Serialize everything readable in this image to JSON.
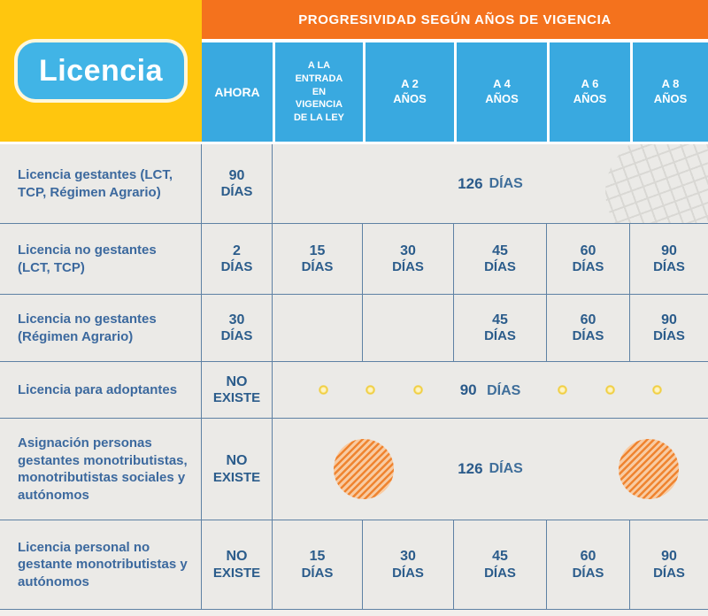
{
  "palette": {
    "yellow": "#FFC60E",
    "orange": "#F4721D",
    "cyan": "#39A9E0",
    "pill_cyan": "#41B4E6",
    "label_blue": "#3C699E",
    "value_blue": "#2B5C8B",
    "grid_line": "#5E81A4",
    "row_bg": "#EBEAE7",
    "hatch_orange": "#EF8430",
    "hatch_orange_light": "#F8CBA2",
    "dot_yellow": "#F0CA2C"
  },
  "header": {
    "licencia_label": "Licencia",
    "band_title": "PROGRESIVIDAD SEGÚN AÑOS DE VIGENCIA",
    "columns": [
      "AHORA",
      "A LA\nENTRADA\nEN\nVIGENCIA\nDE LA LEY",
      "A 2\nAÑOS",
      "A 4\nAÑOS",
      "A 6\nAÑOS",
      "A 8\nAÑOS"
    ]
  },
  "rows": [
    {
      "label": "Licencia gestantes (LCT, TCP, Régimen Agrario)",
      "ahora_top": "90",
      "ahora_bottom": "DÍAS",
      "merged_num": "126",
      "merged_unit": "DÍAS"
    },
    {
      "label": "Licencia no gestantes (LCT, TCP)",
      "cells": [
        {
          "top": "2",
          "bottom": "DÍAS"
        },
        {
          "top": "15",
          "bottom": "DÍAS"
        },
        {
          "top": "30",
          "bottom": "DÍAS"
        },
        {
          "top": "45",
          "bottom": "DÍAS"
        },
        {
          "top": "60",
          "bottom": "DÍAS"
        },
        {
          "top": "90",
          "bottom": "DÍAS"
        }
      ]
    },
    {
      "label": "Licencia no gestantes (Régimen Agrario)",
      "cells": [
        {
          "top": "30",
          "bottom": "DÍAS"
        },
        {
          "top": "",
          "bottom": ""
        },
        {
          "top": "",
          "bottom": ""
        },
        {
          "top": "45",
          "bottom": "DÍAS"
        },
        {
          "top": "60",
          "bottom": "DÍAS"
        },
        {
          "top": "90",
          "bottom": "DÍAS"
        }
      ]
    },
    {
      "label": "Licencia para adoptantes",
      "ahora_top": "NO",
      "ahora_bottom": "EXISTE",
      "merged_num": "90",
      "merged_unit": "DÍAS"
    },
    {
      "label": "Asignación personas gestantes monotributistas, monotributistas sociales y autónomos",
      "ahora_top": "NO",
      "ahora_bottom": "EXISTE",
      "merged_num": "126",
      "merged_unit": "DÍAS"
    },
    {
      "label": "Licencia personal no gestante monotributistas y autónomos",
      "cells": [
        {
          "top": "NO",
          "bottom": "EXISTE"
        },
        {
          "top": "15",
          "bottom": "DÍAS"
        },
        {
          "top": "30",
          "bottom": "DÍAS"
        },
        {
          "top": "45",
          "bottom": "DÍAS"
        },
        {
          "top": "60",
          "bottom": "DÍAS"
        },
        {
          "top": "90",
          "bottom": "DÍAS"
        }
      ]
    }
  ],
  "chart_data": {
    "type": "table",
    "title": "PROGRESIVIDAD SEGÚN AÑOS DE VIGENCIA",
    "row_header": "Licencia",
    "columns": [
      "AHORA",
      "A LA ENTRADA EN VIGENCIA DE LA LEY",
      "A 2 AÑOS",
      "A 4 AÑOS",
      "A 6 AÑOS",
      "A 8 AÑOS"
    ],
    "rows": [
      {
        "label": "Licencia gestantes (LCT, TCP, Régimen Agrario)",
        "values": [
          "90 DÍAS",
          "126 DÍAS",
          "126 DÍAS",
          "126 DÍAS",
          "126 DÍAS",
          "126 DÍAS"
        ],
        "merged_from_col2": true
      },
      {
        "label": "Licencia no gestantes (LCT, TCP)",
        "values": [
          "2 DÍAS",
          "15 DÍAS",
          "30 DÍAS",
          "45 DÍAS",
          "60 DÍAS",
          "90 DÍAS"
        ]
      },
      {
        "label": "Licencia no gestantes (Régimen Agrario)",
        "values": [
          "30 DÍAS",
          "",
          "",
          "45 DÍAS",
          "60 DÍAS",
          "90 DÍAS"
        ]
      },
      {
        "label": "Licencia para adoptantes",
        "values": [
          "NO EXISTE",
          "90 DÍAS",
          "90 DÍAS",
          "90 DÍAS",
          "90 DÍAS",
          "90 DÍAS"
        ],
        "merged_from_col2": true
      },
      {
        "label": "Asignación personas gestantes monotributistas, monotributistas sociales y autónomos",
        "values": [
          "NO EXISTE",
          "126 DÍAS",
          "126 DÍAS",
          "126 DÍAS",
          "126 DÍAS",
          "126 DÍAS"
        ],
        "merged_from_col2": true
      },
      {
        "label": "Licencia personal no gestante monotributistas y autónomos",
        "values": [
          "NO EXISTE",
          "15 DÍAS",
          "30 DÍAS",
          "45 DÍAS",
          "60 DÍAS",
          "90 DÍAS"
        ]
      }
    ]
  }
}
